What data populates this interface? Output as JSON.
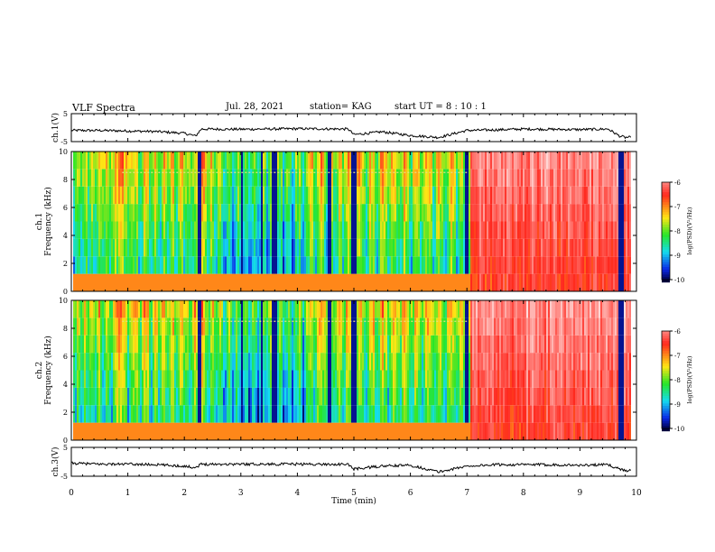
{
  "header": {
    "title": "VLF Spectra",
    "date": "Jul. 28, 2021",
    "station": "station= KAG",
    "start": "start  UT =   8 : 10 : 1"
  },
  "colors": {
    "scale": [
      "#000050",
      "#0000ff",
      "#00ffff",
      "#00ff00",
      "#ffff00",
      "#ff0000",
      "#ffffff"
    ]
  },
  "chart_data": [
    {
      "type": "line",
      "panel": "ch1-voltage",
      "ylabel": "ch.1(V)",
      "yticks": [
        "5",
        "-5"
      ],
      "ylim": [
        -5,
        5
      ],
      "x": [
        0,
        0.5,
        1,
        1.5,
        2,
        2.2,
        2.3,
        3,
        4,
        4.9,
        5.0,
        5.5,
        6,
        6.5,
        7,
        7.5,
        8,
        8.5,
        9,
        9.5,
        9.7,
        9.8,
        9.9
      ],
      "values": [
        -1,
        -1,
        -1.2,
        -1.4,
        -2,
        -3,
        -0.5,
        -0.6,
        -0.4,
        -0.5,
        -2.5,
        -1.5,
        -2.8,
        -3.5,
        -1,
        -0.8,
        -0.5,
        -0.6,
        -0.7,
        -0.5,
        -3,
        -3.5,
        -3.5
      ]
    },
    {
      "type": "heatmap",
      "panel": "ch1-spectrogram",
      "ylabel": "ch.1\nFrequency (kHz)",
      "yticks": [
        "0",
        "2",
        "4",
        "6",
        "8",
        "10"
      ],
      "ylim": [
        0,
        10
      ],
      "colorbar_label": "log(PSD)(V²/Hz)",
      "colorbar_ticks": [
        "-6",
        "-7",
        "-8",
        "-9",
        "-10"
      ],
      "band_centers_min": [
        0.05,
        0.17,
        0.3,
        0.42,
        0.55,
        0.68,
        1.0,
        1.2,
        1.4,
        1.55,
        1.7,
        1.85,
        2.0,
        2.1,
        2.4,
        2.55,
        2.7,
        2.85,
        3.0,
        3.15,
        3.3,
        3.45,
        3.6,
        3.75,
        3.9,
        4.1,
        4.3,
        4.5,
        4.65,
        4.8,
        5.0,
        5.2,
        5.4,
        5.6,
        5.8,
        6.0,
        6.2,
        6.4,
        6.6,
        6.8,
        6.95
      ],
      "dark_lines_min": [
        2.25,
        3.0,
        3.35,
        3.55,
        3.6,
        4.55,
        4.95,
        5.0,
        6.98,
        9.7,
        9.75
      ],
      "red_region_min": [
        7.05,
        9.9
      ],
      "tone_khz": 8.5
    },
    {
      "type": "heatmap",
      "panel": "ch2-spectrogram",
      "ylabel": "ch.2\nFrequency (kHz)",
      "yticks": [
        "0",
        "2",
        "4",
        "6",
        "8",
        "10"
      ],
      "ylim": [
        0,
        10
      ],
      "colorbar_label": "log(PSD)(V²/Hz)",
      "colorbar_ticks": [
        "-6",
        "-7",
        "-8",
        "-9",
        "-10"
      ]
    },
    {
      "type": "line",
      "panel": "ch3-voltage",
      "ylabel": "ch.3(V)",
      "yticks": [
        "5",
        "-5"
      ],
      "ylim": [
        -5,
        5
      ],
      "x": [
        0,
        0.5,
        1,
        1.5,
        2,
        2.2,
        2.3,
        3,
        4,
        4.9,
        5.0,
        5.5,
        6,
        6.5,
        7,
        7.5,
        8,
        8.5,
        9,
        9.5,
        9.7,
        9.8,
        9.9
      ],
      "values": [
        -0.5,
        -0.8,
        -0.8,
        -1,
        -1.5,
        -2,
        -0.8,
        -0.8,
        -0.8,
        -0.9,
        -2.5,
        -1.5,
        -1.2,
        -3.5,
        -1.5,
        -1,
        -1,
        -1,
        -1.2,
        -1,
        -2.5,
        -3,
        -3
      ]
    }
  ],
  "xaxis": {
    "label": "Time (min)",
    "ticks": [
      "0",
      "1",
      "2",
      "3",
      "4",
      "5",
      "6",
      "7",
      "8",
      "9",
      "10"
    ],
    "xlim": [
      0,
      10
    ]
  }
}
